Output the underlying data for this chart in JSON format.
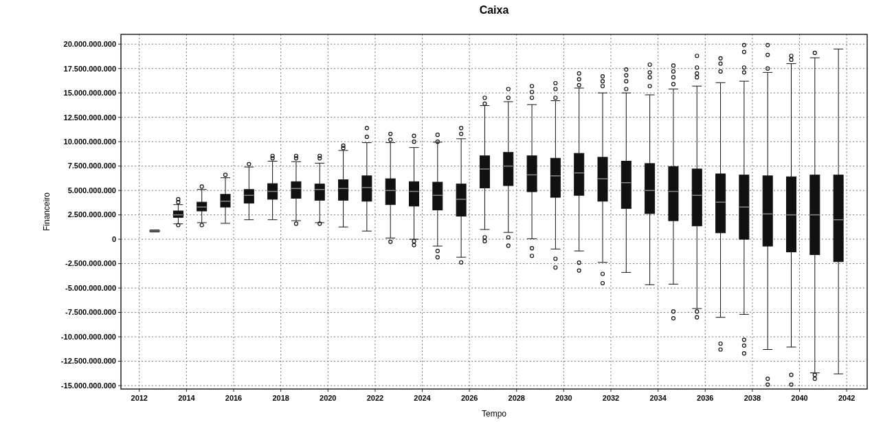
{
  "chart_data": {
    "type": "box",
    "title": "Caixa",
    "xlabel": "Tempo",
    "ylabel": "Financeiro",
    "x": [
      2012.65,
      2013.65,
      2014.65,
      2015.65,
      2016.65,
      2017.65,
      2018.65,
      2019.65,
      2020.65,
      2021.65,
      2022.65,
      2023.65,
      2024.65,
      2025.65,
      2026.65,
      2027.65,
      2028.65,
      2029.65,
      2030.65,
      2031.65,
      2032.65,
      2033.65,
      2034.65,
      2035.65,
      2036.65,
      2037.65,
      2038.65,
      2039.65,
      2040.65,
      2041.65
    ],
    "color": "#111111",
    "boxes": [
      {
        "low": 750000000.0,
        "q1": 800000000.0,
        "median": 850000000.0,
        "q3": 900000000.0,
        "high": 950000000.0
      },
      {
        "low": 1580000000.0,
        "q1": 2240000000.0,
        "median": 2500000000.0,
        "q3": 2900000000.0,
        "high": 3550000000.0,
        "outliers": [
          4100000000.0,
          3800000000.0,
          1450000000.0
        ]
      },
      {
        "low": 1700000000.0,
        "q1": 2900000000.0,
        "median": 3300000000.0,
        "q3": 3800000000.0,
        "high": 5100000000.0,
        "outliers": [
          5400000000.0,
          1450000000.0
        ]
      },
      {
        "low": 1630000000.0,
        "q1": 3300000000.0,
        "median": 3900000000.0,
        "q3": 4600000000.0,
        "high": 6300000000.0,
        "outliers": [
          6600000000.0
        ]
      },
      {
        "low": 2000000000.0,
        "q1": 3700000000.0,
        "median": 4500000000.0,
        "q3": 5100000000.0,
        "high": 7400000000.0,
        "outliers": [
          7700000000.0
        ]
      },
      {
        "low": 2000000000.0,
        "q1": 4100000000.0,
        "median": 4900000000.0,
        "q3": 5700000000.0,
        "high": 8000000000.0,
        "outliers": [
          8550000000.0,
          8300000000.0
        ]
      },
      {
        "low": 1900000000.0,
        "q1": 4200000000.0,
        "median": 5200000000.0,
        "q3": 5900000000.0,
        "high": 7950000000.0,
        "outliers": [
          8550000000.0,
          8300000000.0,
          1600000000.0
        ]
      },
      {
        "low": 1700000000.0,
        "q1": 4000000000.0,
        "median": 5100000000.0,
        "q3": 5660000000.0,
        "high": 7800000000.0,
        "outliers": [
          8550000000.0,
          8300000000.0,
          1600000000.0
        ]
      },
      {
        "low": 1260000000.0,
        "q1": 4000000000.0,
        "median": 5200000000.0,
        "q3": 6100000000.0,
        "high": 9100000000.0,
        "outliers": [
          9600000000.0,
          9350000000.0
        ]
      },
      {
        "low": 840000000.0,
        "q1": 3900000000.0,
        "median": 5300000000.0,
        "q3": 6500000000.0,
        "high": 9900000000.0,
        "outliers": [
          10500000000.0,
          11400000000.0
        ]
      },
      {
        "low": 130000000.0,
        "q1": 3550000000.0,
        "median": 5000000000.0,
        "q3": 6200000000.0,
        "high": 9900000000.0,
        "outliers": [
          10800000000.0,
          10200000000.0,
          -260000000.0
        ]
      },
      {
        "low": 0.0,
        "q1": 3400000000.0,
        "median": 4900000000.0,
        "q3": 5900000000.0,
        "high": 9400000000.0,
        "outliers": [
          10600000000.0,
          10000000000.0,
          -200000000.0,
          -600000000.0
        ]
      },
      {
        "low": -700000000.0,
        "q1": 3000000000.0,
        "median": 4500000000.0,
        "q3": 5850000000.0,
        "high": 9950000000.0,
        "outliers": [
          10700000000.0,
          10000000000.0,
          -1200000000.0,
          -1850000000.0
        ]
      },
      {
        "low": -1840000000.0,
        "q1": 2370000000.0,
        "median": 4100000000.0,
        "q3": 5660000000.0,
        "high": 10300000000.0,
        "outliers": [
          11400000000.0,
          10800000000.0,
          -2370000000.0
        ]
      },
      {
        "low": 1000000000.0,
        "q1": 5260000000.0,
        "median": 7200000000.0,
        "q3": 8550000000.0,
        "high": 13700000000.0,
        "outliers": [
          14500000000.0,
          13900000000.0,
          200000000.0,
          -200000000.0
        ]
      },
      {
        "low": 700000000.0,
        "q1": 5500000000.0,
        "median": 7500000000.0,
        "q3": 8900000000.0,
        "high": 14100000000.0,
        "outliers": [
          15400000000.0,
          14500000000.0,
          200000000.0,
          -660000000.0
        ]
      },
      {
        "low": 50000000.0,
        "q1": 4870000000.0,
        "median": 6600000000.0,
        "q3": 8550000000.0,
        "high": 13800000000.0,
        "outliers": [
          15700000000.0,
          15100000000.0,
          14500000000.0,
          -920000000.0,
          -1700000000.0
        ]
      },
      {
        "low": -1000000000.0,
        "q1": 4300000000.0,
        "median": 6500000000.0,
        "q3": 8300000000.0,
        "high": 14200000000.0,
        "outliers": [
          16000000000.0,
          15400000000.0,
          14500000000.0,
          -2000000000.0,
          -2900000000.0
        ]
      },
      {
        "low": -1200000000.0,
        "q1": 4500000000.0,
        "median": 6800000000.0,
        "q3": 8800000000.0,
        "high": 15500000000.0,
        "outliers": [
          17000000000.0,
          16400000000.0,
          15800000000.0,
          -2400000000.0,
          -3200000000.0
        ]
      },
      {
        "low": -2370000000.0,
        "q1": 3900000000.0,
        "median": 6200000000.0,
        "q3": 8400000000.0,
        "high": 15000000000.0,
        "outliers": [
          16700000000.0,
          16200000000.0,
          15700000000.0,
          -3550000000.0,
          -4500000000.0
        ]
      },
      {
        "low": -3400000000.0,
        "q1": 3160000000.0,
        "median": 5800000000.0,
        "q3": 8000000000.0,
        "high": 15000000000.0,
        "outliers": [
          17400000000.0,
          16800000000.0,
          16200000000.0,
          15400000000.0
        ]
      },
      {
        "low": -4660000000.0,
        "q1": 2630000000.0,
        "median": 5000000000.0,
        "q3": 7760000000.0,
        "high": 14800000000.0,
        "outliers": [
          17900000000.0,
          17100000000.0,
          16600000000.0,
          15700000000.0
        ]
      },
      {
        "low": -4600000000.0,
        "q1": 1900000000.0,
        "median": 4900000000.0,
        "q3": 7450000000.0,
        "high": 15400000000.0,
        "outliers": [
          17800000000.0,
          17200000000.0,
          16600000000.0,
          15900000000.0,
          -7400000000.0,
          -8100000000.0
        ]
      },
      {
        "low": -7100000000.0,
        "q1": 1370000000.0,
        "median": 4500000000.0,
        "q3": 7200000000.0,
        "high": 15700000000.0,
        "outliers": [
          18800000000.0,
          17600000000.0,
          17000000000.0,
          16600000000.0,
          -7400000000.0,
          -8000000000.0
        ]
      },
      {
        "low": -8000000000.0,
        "q1": 660000000.0,
        "median": 3800000000.0,
        "q3": 6700000000.0,
        "high": 16050000000.0,
        "outliers": [
          18550000000.0,
          18000000000.0,
          17200000000.0,
          -10700000000.0,
          -11300000000.0
        ]
      },
      {
        "low": -7700000000.0,
        "q1": 0.0,
        "median": 3300000000.0,
        "q3": 6580000000.0,
        "high": 16200000000.0,
        "outliers": [
          19900000000.0,
          19200000000.0,
          17600000000.0,
          17100000000.0,
          -10300000000.0,
          -10900000000.0,
          -11700000000.0
        ]
      },
      {
        "low": -11300000000.0,
        "q1": -700000000.0,
        "median": 2600000000.0,
        "q3": 6500000000.0,
        "high": 17100000000.0,
        "outliers": [
          19900000000.0,
          18900000000.0,
          17500000000.0,
          -14300000000.0,
          -14900000000.0
        ]
      },
      {
        "low": -11050000000.0,
        "q1": -1300000000.0,
        "median": 2500000000.0,
        "q3": 6400000000.0,
        "high": 18000000000.0,
        "outliers": [
          18800000000.0,
          18400000000.0,
          -13900000000.0,
          -14900000000.0
        ]
      },
      {
        "low": -13700000000.0,
        "q1": -1580000000.0,
        "median": 2500000000.0,
        "q3": 6580000000.0,
        "high": 18600000000.0,
        "outliers": [
          19100000000.0,
          -13900000000.0,
          -14300000000.0
        ]
      },
      {
        "low": -13800000000.0,
        "q1": -2300000000.0,
        "median": 2000000000.0,
        "q3": 6580000000.0,
        "high": 19500000000.0
      }
    ],
    "xlim": [
      2011.22,
      2042.87
    ],
    "xticks": [
      2012,
      2014,
      2016,
      2018,
      2020,
      2022,
      2024,
      2026,
      2028,
      2030,
      2032,
      2034,
      2036,
      2038,
      2040,
      2042
    ],
    "ylim": [
      -15350000000.0,
      21000000000.0
    ],
    "yticks": [
      {
        "value": 20000000000,
        "label": "20.000.000.000"
      },
      {
        "value": 17500000000,
        "label": "17.500.000.000"
      },
      {
        "value": 15000000000,
        "label": "15.000.000.000"
      },
      {
        "value": 12500000000,
        "label": "12.500.000.000"
      },
      {
        "value": 10000000000,
        "label": "10.000.000.000"
      },
      {
        "value": 7500000000,
        "label": "7.500.000.000"
      },
      {
        "value": 5000000000,
        "label": "5.000.000.000"
      },
      {
        "value": 2500000000,
        "label": "2.500.000.000"
      },
      {
        "value": 0,
        "label": "0"
      },
      {
        "value": -2500000000,
        "label": "-2.500.000.000"
      },
      {
        "value": -5000000000,
        "label": "-5.000.000.000"
      },
      {
        "value": -7500000000,
        "label": "-7.500.000.000"
      },
      {
        "value": -10000000000,
        "label": "-10.000.000.000"
      },
      {
        "value": -12500000000,
        "label": "-12.500.000.000"
      },
      {
        "value": -15000000000,
        "label": "-15.000.000.000"
      }
    ],
    "grid": true,
    "marker": "circle"
  }
}
